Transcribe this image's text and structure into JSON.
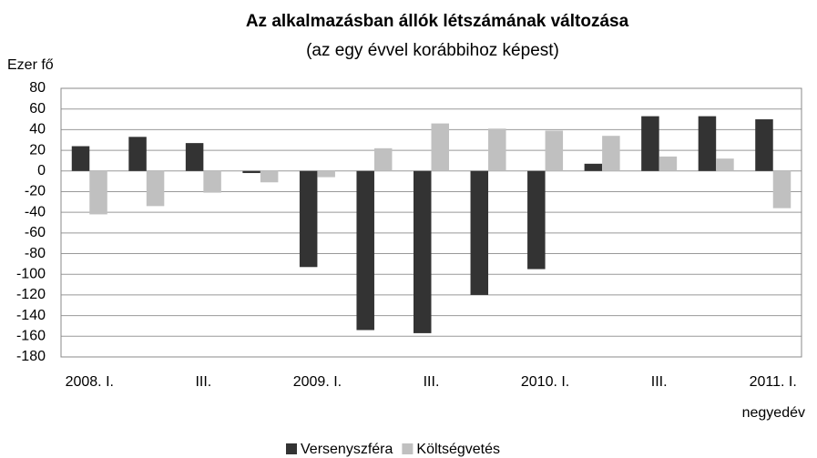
{
  "chart_data": {
    "type": "bar",
    "title": "Az alkalmazásban állók létszámának változása",
    "subtitle": "(az egy évvel korábbihoz képest)",
    "y_label": "Ezer fő",
    "x_label": "negyedév",
    "categories": [
      "2008. I.",
      null,
      "III.",
      null,
      "2009. I.",
      null,
      "III.",
      null,
      "2010. I.",
      null,
      "III.",
      null,
      "2011. I."
    ],
    "series": [
      {
        "name": "Versenyszféra",
        "color": "#333333",
        "values": [
          24,
          33,
          27,
          -2,
          -93,
          -154,
          -157,
          -120,
          -95,
          7,
          53,
          53,
          50
        ]
      },
      {
        "name": "Költségvetés",
        "color": "#c0c0c0",
        "values": [
          -42,
          -34,
          -21,
          -11,
          -6,
          22,
          46,
          41,
          39,
          34,
          14,
          12,
          -36
        ]
      }
    ],
    "ylim": [
      -180,
      80
    ],
    "yticks": [
      -180,
      -160,
      -140,
      -120,
      -100,
      -80,
      -60,
      -40,
      -20,
      0,
      20,
      40,
      60,
      80
    ],
    "grid": true,
    "legend": "bottom"
  }
}
